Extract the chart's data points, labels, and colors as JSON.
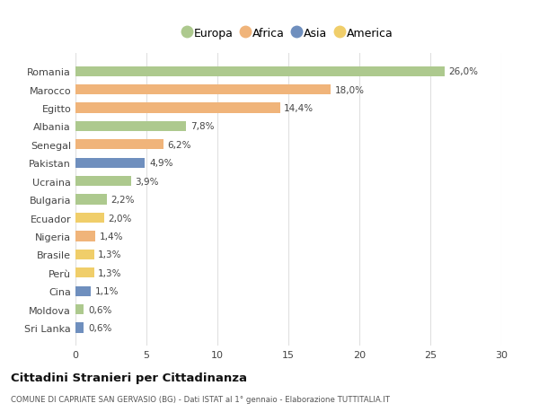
{
  "countries": [
    "Romania",
    "Marocco",
    "Egitto",
    "Albania",
    "Senegal",
    "Pakistan",
    "Ucraina",
    "Bulgaria",
    "Ecuador",
    "Nigeria",
    "Brasile",
    "Perù",
    "Cina",
    "Moldova",
    "Sri Lanka"
  ],
  "values": [
    26.0,
    18.0,
    14.4,
    7.8,
    6.2,
    4.9,
    3.9,
    2.2,
    2.0,
    1.4,
    1.3,
    1.3,
    1.1,
    0.6,
    0.6
  ],
  "labels": [
    "26,0%",
    "18,0%",
    "14,4%",
    "7,8%",
    "6,2%",
    "4,9%",
    "3,9%",
    "2,2%",
    "2,0%",
    "1,4%",
    "1,3%",
    "1,3%",
    "1,1%",
    "0,6%",
    "0,6%"
  ],
  "continents": [
    "Europa",
    "Africa",
    "Africa",
    "Europa",
    "Africa",
    "Asia",
    "Europa",
    "Europa",
    "America",
    "Africa",
    "America",
    "America",
    "Asia",
    "Europa",
    "Asia"
  ],
  "continent_colors": {
    "Europa": "#adc98e",
    "Africa": "#f0b47a",
    "Asia": "#6f8fbe",
    "America": "#f0ce6a"
  },
  "legend_order": [
    "Europa",
    "Africa",
    "Asia",
    "America"
  ],
  "title": "Cittadini Stranieri per Cittadinanza",
  "subtitle": "COMUNE DI CAPRIATE SAN GERVASIO (BG) - Dati ISTAT al 1° gennaio - Elaborazione TUTTITALIA.IT",
  "xlim": [
    0,
    30
  ],
  "xticks": [
    0,
    5,
    10,
    15,
    20,
    25,
    30
  ],
  "background_color": "#ffffff",
  "grid_color": "#e0e0e0",
  "bar_height": 0.55
}
